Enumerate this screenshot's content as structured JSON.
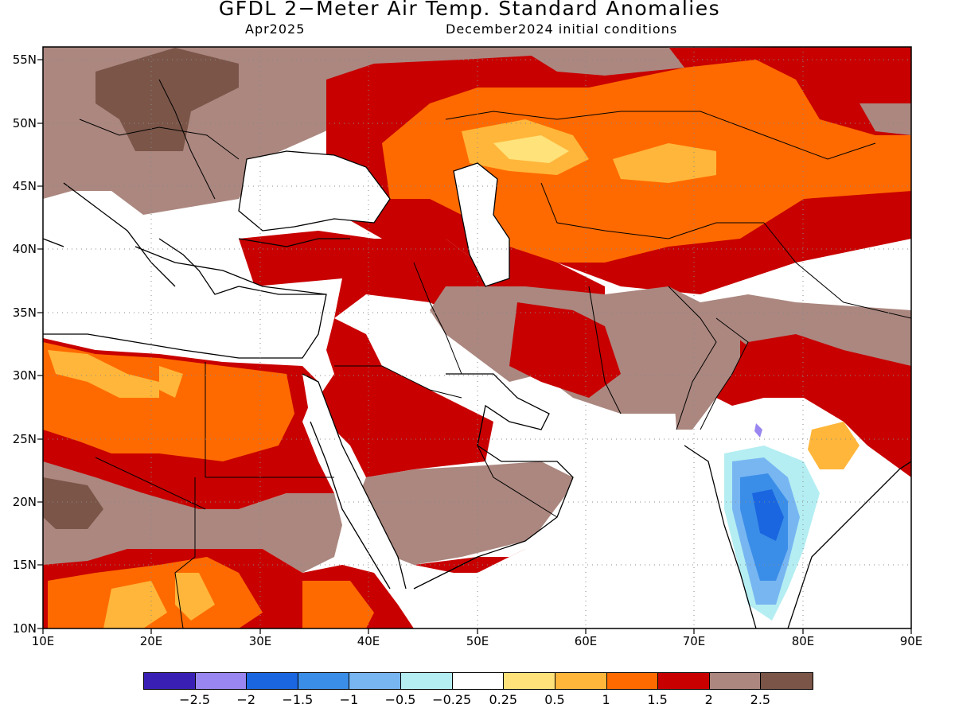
{
  "title": "GFDL 2−Meter Air Temp. Standard Anomalies",
  "subtitle_left": "Apr2025",
  "subtitle_right": "December2024 initial conditions",
  "map": {
    "lon_range": [
      10,
      90
    ],
    "lat_range": [
      10,
      56
    ],
    "lon_ticks": [
      "10E",
      "20E",
      "30E",
      "40E",
      "50E",
      "60E",
      "70E",
      "80E",
      "90E"
    ],
    "lat_ticks": [
      "55N",
      "50N",
      "45N",
      "40N",
      "35N",
      "30N",
      "25N",
      "20N",
      "15N",
      "10N"
    ],
    "grid": "dotted",
    "coastline_color": "#000000"
  },
  "colorbar": {
    "colors": [
      "#3a1fb5",
      "#9a86f0",
      "#1a66e0",
      "#3b8ee8",
      "#78b6f2",
      "#b4eef2",
      "#ffffff",
      "#ffe27a",
      "#ffb63a",
      "#ff6a00",
      "#c80000",
      "#ab877f",
      "#7a5548"
    ],
    "labels": [
      "−2.5",
      "−2",
      "−1.5",
      "−1",
      "−0.5",
      "−0.25",
      "0.25",
      "0.5",
      "1",
      "1.5",
      "2",
      "2.5"
    ]
  }
}
